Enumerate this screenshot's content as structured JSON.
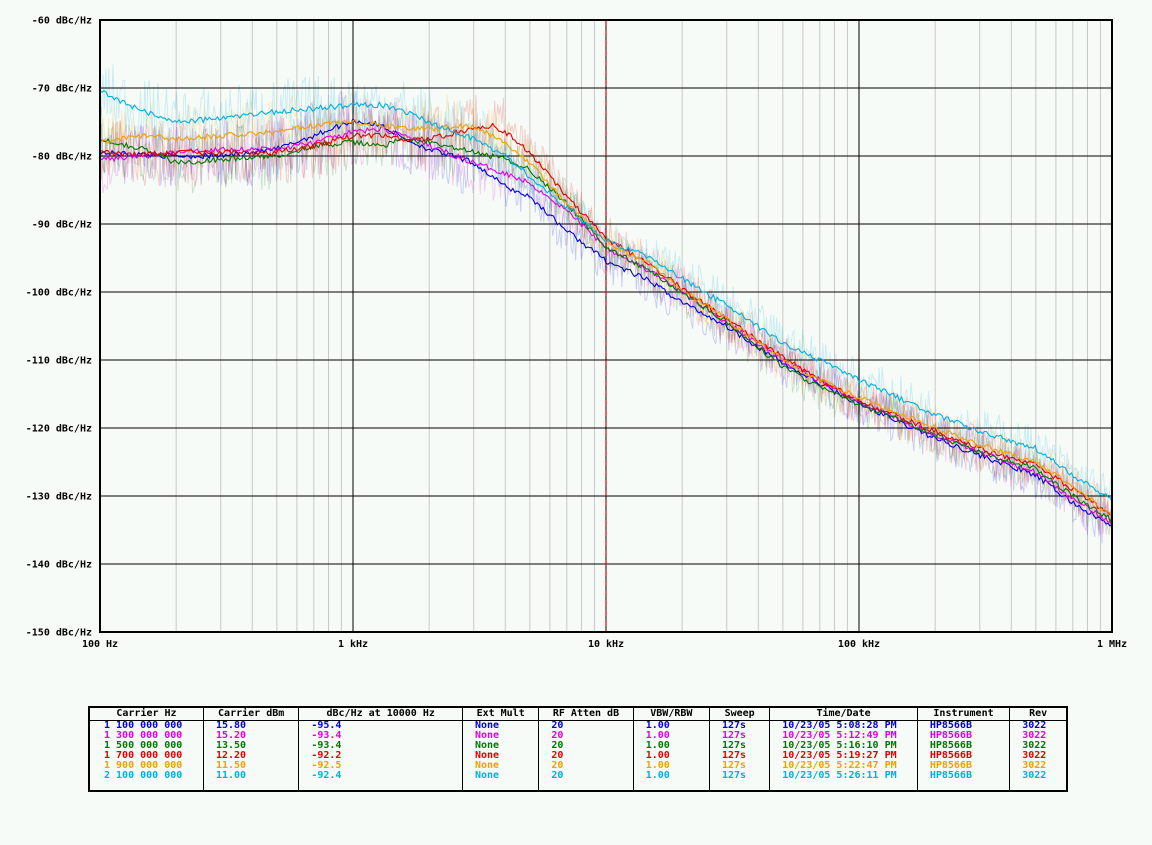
{
  "chart_data": {
    "type": "line",
    "x_scale": "log",
    "xlim": [
      100,
      1000000
    ],
    "ylim": [
      -150,
      -60
    ],
    "grid": true,
    "yticks": [
      {
        "value": -60,
        "label": "-60 dBc/Hz"
      },
      {
        "value": -70,
        "label": "-70 dBc/Hz"
      },
      {
        "value": -80,
        "label": "-80 dBc/Hz"
      },
      {
        "value": -90,
        "label": "-90 dBc/Hz"
      },
      {
        "value": -100,
        "label": "-100 dBc/Hz"
      },
      {
        "value": -110,
        "label": "-110 dBc/Hz"
      },
      {
        "value": -120,
        "label": "-120 dBc/Hz"
      },
      {
        "value": -130,
        "label": "-130 dBc/Hz"
      },
      {
        "value": -140,
        "label": "-140 dBc/Hz"
      },
      {
        "value": -150,
        "label": "-150 dBc/Hz"
      }
    ],
    "xticks": [
      {
        "value": 100,
        "label": "100 Hz"
      },
      {
        "value": 1000,
        "label": "1 kHz"
      },
      {
        "value": 10000,
        "label": "10 kHz"
      },
      {
        "value": 100000,
        "label": "100 kHz"
      },
      {
        "value": 1000000,
        "label": "1 MHz"
      }
    ],
    "marker_line": {
      "x": 10000,
      "color": "#e00000",
      "style": "dashed"
    },
    "series": [
      {
        "color": "#0000e0",
        "points": [
          [
            100,
            -79.5
          ],
          [
            150,
            -79.8
          ],
          [
            200,
            -80
          ],
          [
            300,
            -80
          ],
          [
            500,
            -79
          ],
          [
            700,
            -77
          ],
          [
            1000,
            -74.8
          ],
          [
            1300,
            -75.5
          ],
          [
            1600,
            -77.5
          ],
          [
            2000,
            -79
          ],
          [
            3000,
            -81
          ],
          [
            4000,
            -84.5
          ],
          [
            5000,
            -86
          ],
          [
            7000,
            -91
          ],
          [
            10000,
            -95.4
          ],
          [
            15000,
            -98.5
          ],
          [
            20000,
            -101.5
          ],
          [
            30000,
            -105
          ],
          [
            50000,
            -110.5
          ],
          [
            70000,
            -113.5
          ],
          [
            100000,
            -116.5
          ],
          [
            200000,
            -121.5
          ],
          [
            300000,
            -124
          ],
          [
            500000,
            -127
          ],
          [
            700000,
            -131
          ],
          [
            1000000,
            -134.5
          ]
        ]
      },
      {
        "color": "#e000e0",
        "points": [
          [
            100,
            -80.5
          ],
          [
            150,
            -80
          ],
          [
            200,
            -79.5
          ],
          [
            300,
            -79
          ],
          [
            500,
            -79
          ],
          [
            700,
            -78
          ],
          [
            1000,
            -76.5
          ],
          [
            1300,
            -76
          ],
          [
            1600,
            -77
          ],
          [
            2000,
            -78.5
          ],
          [
            3000,
            -81
          ],
          [
            4000,
            -82.5
          ],
          [
            5000,
            -84
          ],
          [
            7000,
            -88
          ],
          [
            10000,
            -93.4
          ],
          [
            15000,
            -97
          ],
          [
            20000,
            -100
          ],
          [
            30000,
            -104.5
          ],
          [
            50000,
            -110
          ],
          [
            70000,
            -113
          ],
          [
            100000,
            -116
          ],
          [
            200000,
            -121
          ],
          [
            300000,
            -123.5
          ],
          [
            500000,
            -126.5
          ],
          [
            700000,
            -130.5
          ],
          [
            1000000,
            -134
          ]
        ]
      },
      {
        "color": "#007800",
        "points": [
          [
            100,
            -77.5
          ],
          [
            150,
            -79
          ],
          [
            200,
            -81
          ],
          [
            300,
            -80.5
          ],
          [
            500,
            -80
          ],
          [
            700,
            -78.5
          ],
          [
            1000,
            -78
          ],
          [
            1300,
            -78.5
          ],
          [
            1600,
            -77.5
          ],
          [
            2000,
            -78
          ],
          [
            3000,
            -79.5
          ],
          [
            4000,
            -80.5
          ],
          [
            5000,
            -82
          ],
          [
            7000,
            -87
          ],
          [
            10000,
            -93.4
          ],
          [
            15000,
            -97
          ],
          [
            20000,
            -100
          ],
          [
            30000,
            -104.5
          ],
          [
            50000,
            -111
          ],
          [
            70000,
            -114
          ],
          [
            100000,
            -116.5
          ],
          [
            200000,
            -121
          ],
          [
            300000,
            -123.5
          ],
          [
            500000,
            -126
          ],
          [
            700000,
            -130
          ],
          [
            1000000,
            -133.5
          ]
        ]
      },
      {
        "color": "#e00000",
        "points": [
          [
            100,
            -79.5
          ],
          [
            150,
            -79.8
          ],
          [
            200,
            -79.5
          ],
          [
            300,
            -79.5
          ],
          [
            500,
            -79.5
          ],
          [
            700,
            -78.5
          ],
          [
            1000,
            -77
          ],
          [
            1300,
            -77
          ],
          [
            1600,
            -77.5
          ],
          [
            2000,
            -77.5
          ],
          [
            3000,
            -76
          ],
          [
            3500,
            -75.5
          ],
          [
            4000,
            -76.5
          ],
          [
            5000,
            -79.5
          ],
          [
            7000,
            -86
          ],
          [
            10000,
            -92.2
          ],
          [
            15000,
            -96
          ],
          [
            20000,
            -99.5
          ],
          [
            30000,
            -104
          ],
          [
            50000,
            -109.5
          ],
          [
            70000,
            -113
          ],
          [
            100000,
            -116
          ],
          [
            200000,
            -120.5
          ],
          [
            300000,
            -123
          ],
          [
            500000,
            -125.5
          ],
          [
            700000,
            -129
          ],
          [
            1000000,
            -133
          ]
        ]
      },
      {
        "color": "#f0a000",
        "points": [
          [
            100,
            -78
          ],
          [
            150,
            -77
          ],
          [
            200,
            -77.5
          ],
          [
            300,
            -77
          ],
          [
            500,
            -76.5
          ],
          [
            700,
            -75.5
          ],
          [
            1000,
            -75
          ],
          [
            1300,
            -75.5
          ],
          [
            1600,
            -76
          ],
          [
            2000,
            -76
          ],
          [
            3000,
            -75.5
          ],
          [
            4000,
            -78
          ],
          [
            5000,
            -81
          ],
          [
            7000,
            -87
          ],
          [
            10000,
            -92.5
          ],
          [
            15000,
            -96
          ],
          [
            20000,
            -99.5
          ],
          [
            30000,
            -104
          ],
          [
            50000,
            -110
          ],
          [
            70000,
            -113
          ],
          [
            100000,
            -115.5
          ],
          [
            200000,
            -120
          ],
          [
            300000,
            -122.5
          ],
          [
            500000,
            -125
          ],
          [
            700000,
            -128.5
          ],
          [
            1000000,
            -133
          ]
        ]
      },
      {
        "color": "#00b0e0",
        "points": [
          [
            100,
            -70.5
          ],
          [
            150,
            -73.5
          ],
          [
            200,
            -75
          ],
          [
            300,
            -74.5
          ],
          [
            500,
            -73.5
          ],
          [
            700,
            -73
          ],
          [
            1000,
            -72.5
          ],
          [
            1300,
            -72.5
          ],
          [
            1600,
            -73.5
          ],
          [
            2000,
            -75
          ],
          [
            3000,
            -77.5
          ],
          [
            4000,
            -80
          ],
          [
            5000,
            -83
          ],
          [
            7000,
            -87.5
          ],
          [
            10000,
            -92.4
          ],
          [
            15000,
            -95
          ],
          [
            20000,
            -98
          ],
          [
            30000,
            -102
          ],
          [
            50000,
            -107.5
          ],
          [
            70000,
            -110
          ],
          [
            100000,
            -113
          ],
          [
            200000,
            -118
          ],
          [
            300000,
            -120.5
          ],
          [
            500000,
            -123
          ],
          [
            700000,
            -127
          ],
          [
            1000000,
            -130.5
          ]
        ]
      }
    ]
  },
  "table": {
    "headers": [
      "Carrier Hz",
      "Carrier dBm",
      "dBc/Hz at 10000 Hz",
      "Ext Mult",
      "RF Atten dB",
      "VBW/RBW",
      "Sweep",
      "Time/Date",
      "Instrument",
      "Rev"
    ],
    "rows": [
      {
        "color": "#0000e0",
        "cells": [
          "1 100 000 000",
          "15.80",
          "-95.4",
          "None",
          "20",
          "1.00",
          "127s",
          "10/23/05 5:08:28 PM",
          "HP8566B",
          "3022"
        ]
      },
      {
        "color": "#e000e0",
        "cells": [
          "1 300 000 000",
          "15.20",
          "-93.4",
          "None",
          "20",
          "1.00",
          "127s",
          "10/23/05 5:12:49 PM",
          "HP8566B",
          "3022"
        ]
      },
      {
        "color": "#007800",
        "cells": [
          "1 500 000 000",
          "13.50",
          "-93.4",
          "None",
          "20",
          "1.00",
          "127s",
          "10/23/05 5:16:10 PM",
          "HP8566B",
          "3022"
        ]
      },
      {
        "color": "#e00000",
        "cells": [
          "1 700 000 000",
          "12.20",
          "-92.2",
          "None",
          "20",
          "1.00",
          "127s",
          "10/23/05 5:19:27 PM",
          "HP8566B",
          "3022"
        ]
      },
      {
        "color": "#f0a000",
        "cells": [
          "1 900 000 000",
          "11.50",
          "-92.5",
          "None",
          "20",
          "1.00",
          "127s",
          "10/23/05 5:22:47 PM",
          "HP8566B",
          "3022"
        ]
      },
      {
        "color": "#00b0e0",
        "cells": [
          "2 100 000 000",
          "11.00",
          "-92.4",
          "None",
          "20",
          "1.00",
          "127s",
          "10/23/05 5:26:11 PM",
          "HP8566B",
          "3022"
        ]
      }
    ]
  }
}
